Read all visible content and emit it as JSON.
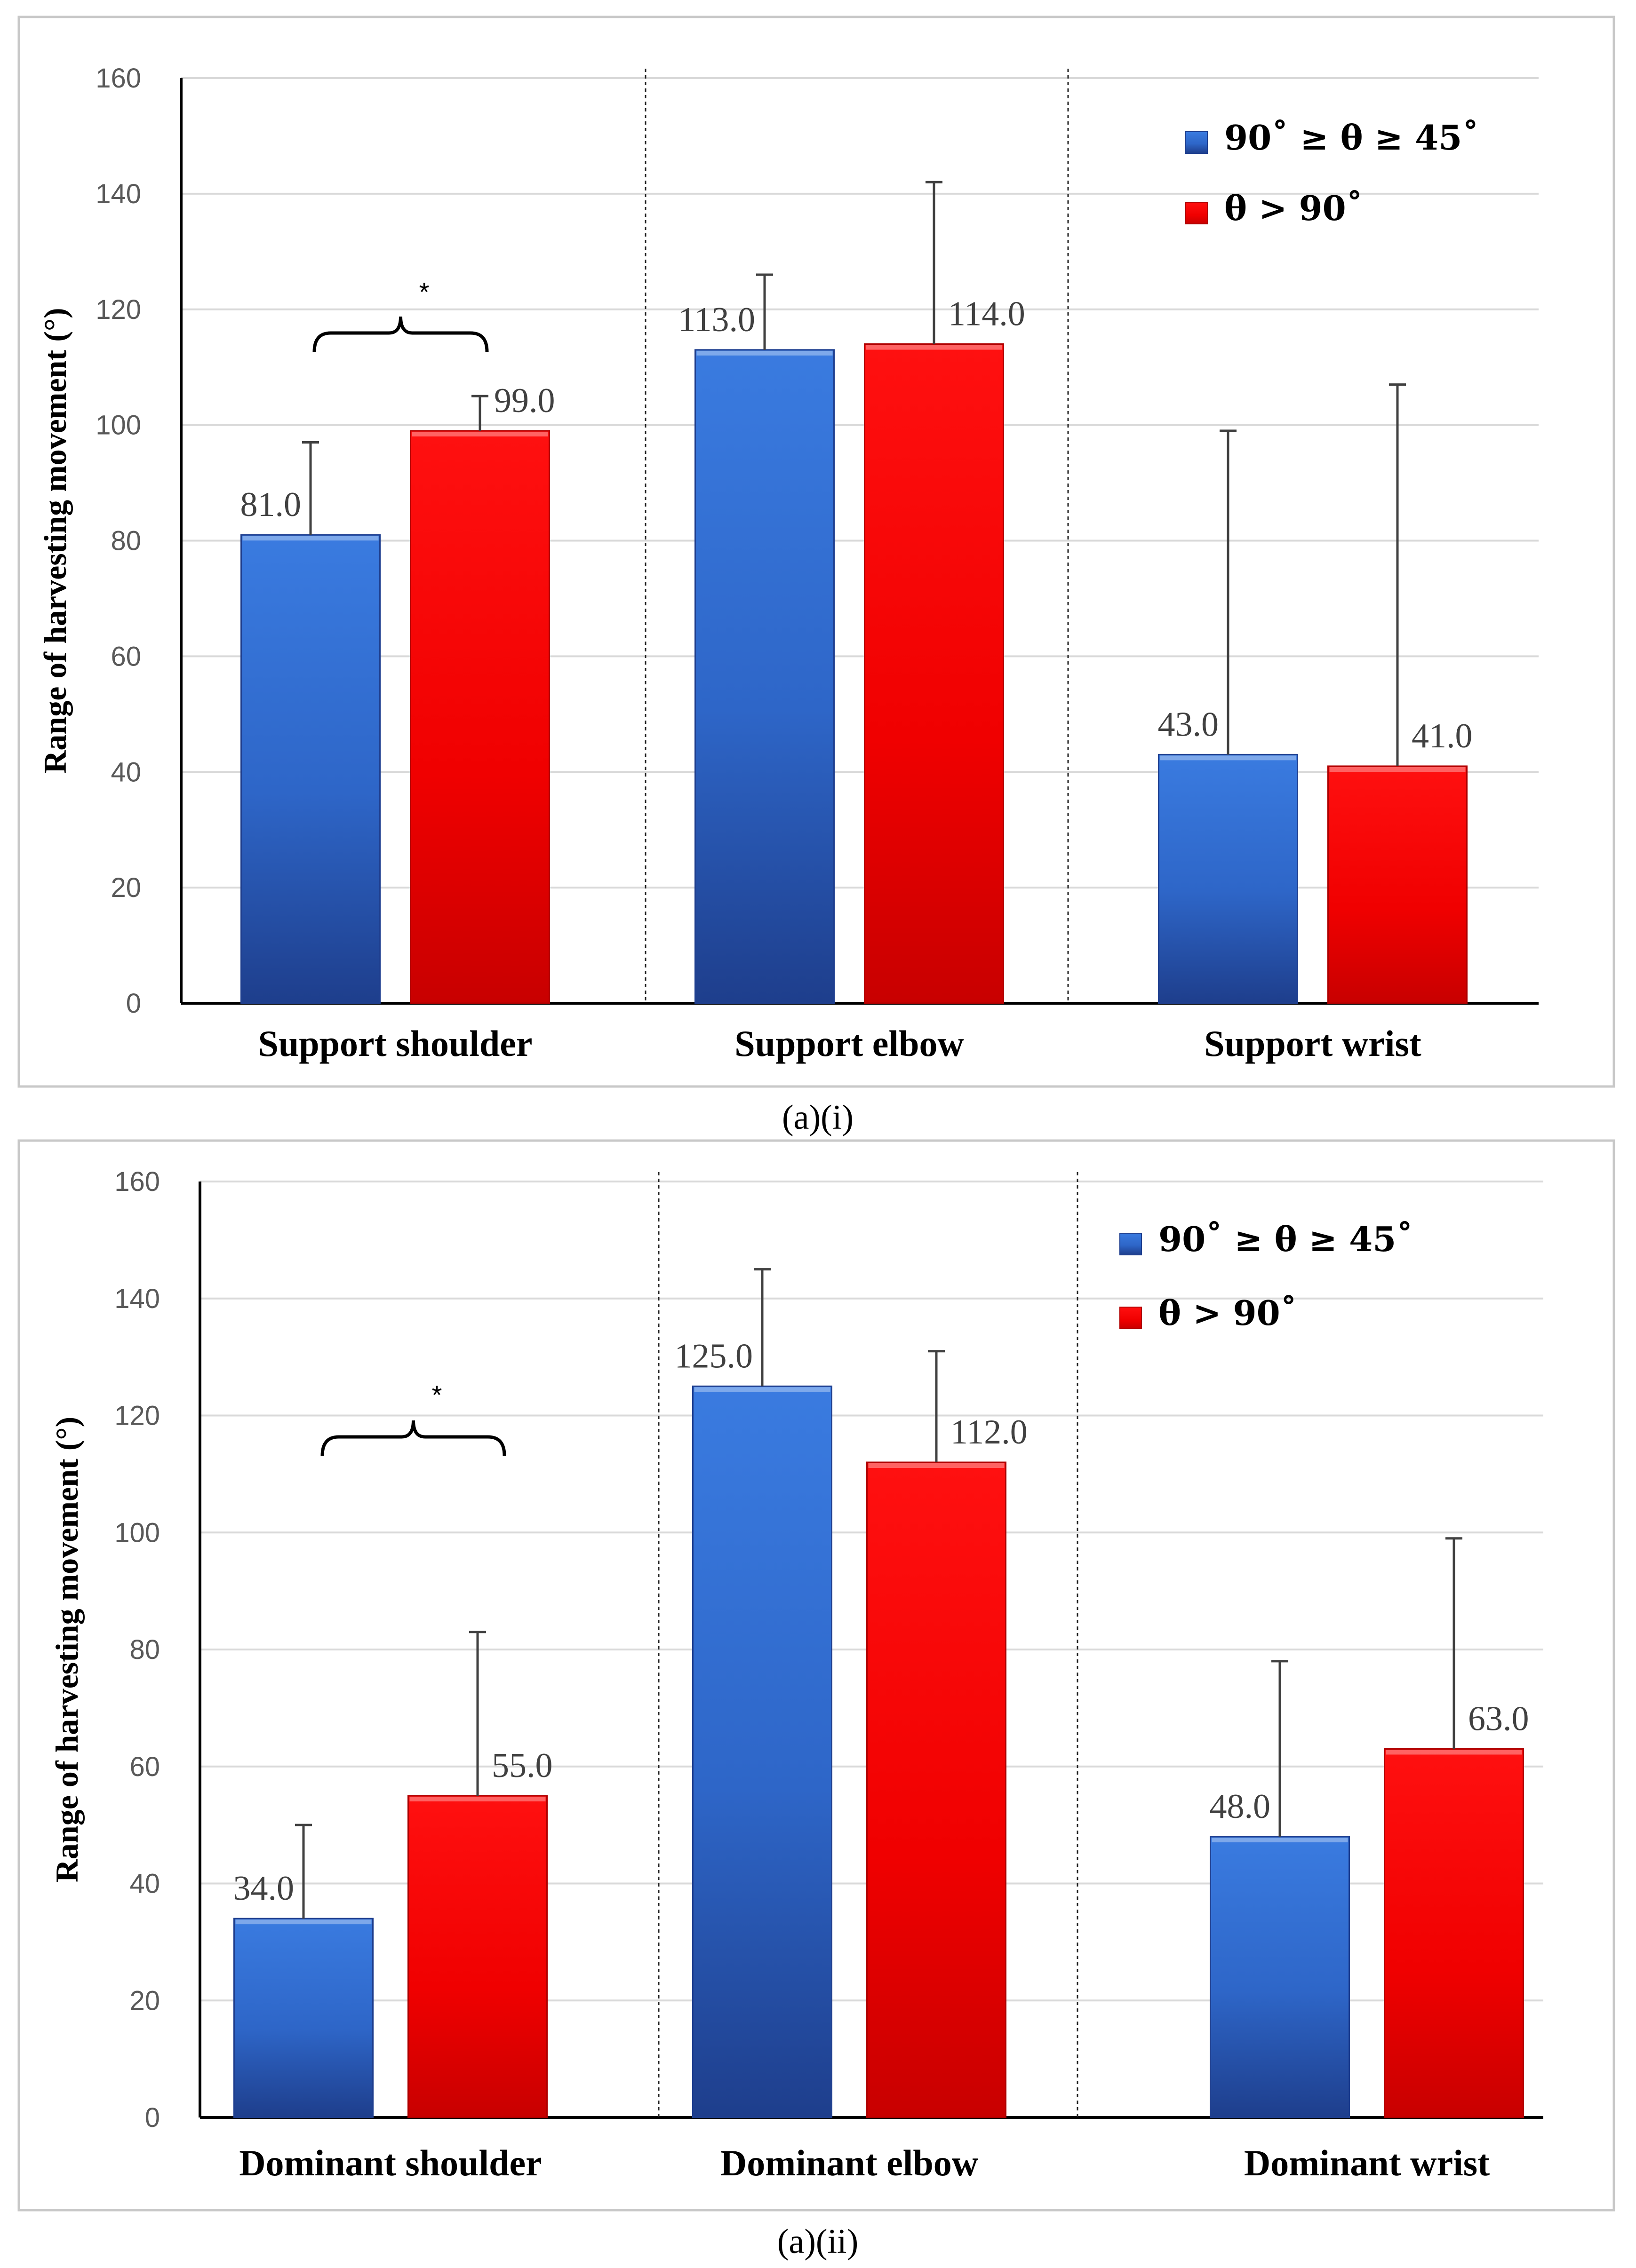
{
  "colors": {
    "series1": "#2f6fd6",
    "series1_dark": "#1f3f8f",
    "series2": "#f00000",
    "series2_dark": "#b00000",
    "grid": "#d9d9d9",
    "axis": "#000000",
    "error": "#404040",
    "frame": "#c8c8c8"
  },
  "chart_data": [
    {
      "type": "bar",
      "caption": "(a)(i)",
      "ylabel": "Range of harvesting movement (°)",
      "ylim": [
        0,
        160
      ],
      "yticks": [
        0,
        20,
        40,
        60,
        80,
        100,
        120,
        140,
        160
      ],
      "grid": true,
      "legend_position": "top-right",
      "categories": [
        "Support  shoulder",
        "Support elbow",
        "Support wrist"
      ],
      "series": [
        {
          "name": "90˚ ≥ θ ≥ 45˚",
          "values": [
            81.0,
            113.0,
            43.0
          ],
          "error_tops": [
            97,
            126,
            99
          ],
          "labels": [
            "81.0",
            "113.0",
            "43.0"
          ]
        },
        {
          "name": "θ > 90˚",
          "values": [
            99.0,
            114.0,
            41.0
          ],
          "error_tops": [
            105,
            142,
            107
          ],
          "labels": [
            "99.0",
            "114.0",
            "41.0"
          ]
        }
      ],
      "annotation": {
        "text": "*",
        "group": 0
      }
    },
    {
      "type": "bar",
      "caption": "(a)(ii)",
      "ylabel": "Range of harvesting movement (°)",
      "ylim": [
        0,
        160
      ],
      "yticks": [
        0,
        20,
        40,
        60,
        80,
        100,
        120,
        140,
        160
      ],
      "grid": true,
      "legend_position": "top-right",
      "categories": [
        "Dominant  shoulder",
        "Dominant elbow",
        "Dominant wrist"
      ],
      "series": [
        {
          "name": "90˚ ≥ θ ≥ 45˚",
          "values": [
            34.0,
            125.0,
            48.0
          ],
          "error_tops": [
            50,
            145,
            78
          ],
          "labels": [
            "34.0",
            "125.0",
            "48.0"
          ]
        },
        {
          "name": "θ > 90˚",
          "values": [
            55.0,
            112.0,
            63.0
          ],
          "error_tops": [
            83,
            131,
            99
          ],
          "labels": [
            "55.0",
            "112.0",
            "63.0"
          ]
        }
      ],
      "annotation": {
        "text": "*",
        "group": 0
      }
    }
  ]
}
